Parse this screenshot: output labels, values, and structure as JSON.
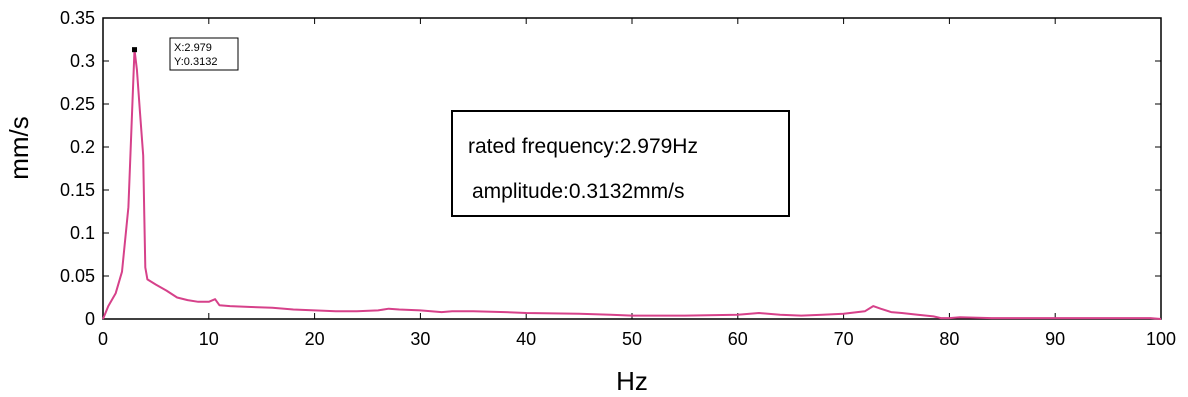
{
  "chart_data": {
    "type": "line",
    "xlabel": "Hz",
    "ylabel": "mm/s",
    "xlim": [
      0,
      100
    ],
    "ylim": [
      0,
      0.35
    ],
    "x_ticks": [
      0,
      10,
      20,
      30,
      40,
      50,
      60,
      70,
      80,
      90,
      100
    ],
    "x_tick_labels": [
      "0",
      "10",
      "20",
      "30",
      "40",
      "50",
      "60",
      "70",
      "80",
      "90",
      "100"
    ],
    "y_ticks": [
      0,
      0.05,
      0.1,
      0.15,
      0.2,
      0.25,
      0.3,
      0.35
    ],
    "y_tick_labels": [
      "0",
      "0.05",
      "0.1",
      "0.15",
      "0.2",
      "0.25",
      "0.3",
      "0.35"
    ],
    "grid": false,
    "line_color": "#d6418a",
    "series": [
      {
        "x": [
          0,
          0.5,
          1.2,
          1.8,
          2.4,
          2.979,
          3.2,
          3.5,
          3.8,
          3.9,
          4.0,
          4.2,
          5,
          6,
          7,
          8,
          9,
          10,
          10.6,
          11,
          12,
          14,
          16,
          18,
          20,
          22,
          24,
          26,
          27,
          28,
          30,
          32,
          33,
          35,
          38,
          40,
          45,
          48,
          50,
          55,
          60,
          62,
          64,
          66,
          68,
          70,
          72,
          72.8,
          73.5,
          74.5,
          75.5,
          77,
          78.5,
          79.2,
          80,
          81,
          84,
          88,
          92,
          96,
          99,
          100
        ],
        "y": [
          0,
          0.015,
          0.03,
          0.055,
          0.13,
          0.3132,
          0.29,
          0.24,
          0.19,
          0.12,
          0.06,
          0.046,
          0.04,
          0.033,
          0.025,
          0.022,
          0.02,
          0.02,
          0.023,
          0.016,
          0.015,
          0.014,
          0.013,
          0.011,
          0.01,
          0.009,
          0.009,
          0.01,
          0.012,
          0.011,
          0.01,
          0.008,
          0.009,
          0.009,
          0.008,
          0.007,
          0.006,
          0.005,
          0.004,
          0.004,
          0.005,
          0.007,
          0.005,
          0.004,
          0.005,
          0.006,
          0.009,
          0.015,
          0.012,
          0.008,
          0.007,
          0.005,
          0.003,
          0.001,
          0.001,
          0.002,
          0.001,
          0.001,
          0.001,
          0.001,
          0.001,
          0
        ]
      }
    ],
    "datatip": {
      "x_text": "X:2.979",
      "y_text": "Y:0.3132",
      "x": 2.979,
      "y": 0.3132
    },
    "annotation": {
      "line1": "rated frequency:2.979Hz",
      "line2": "amplitude:0.3132mm/s"
    }
  }
}
